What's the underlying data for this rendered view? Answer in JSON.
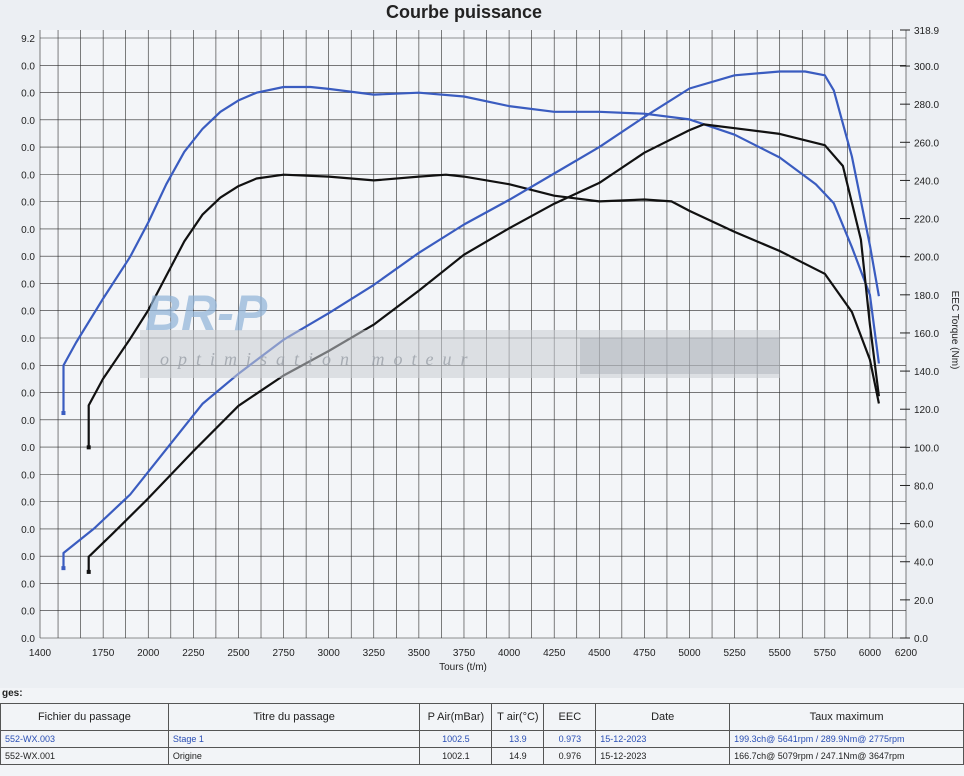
{
  "chart_data": {
    "type": "line",
    "title": "Courbe puissance",
    "xlabel": "Tours (t/m)",
    "ylabel_right": "EEC Torque (Nm)",
    "xlim": [
      1400,
      6200
    ],
    "ylim_left": [
      0,
      322
    ],
    "ylim_right": [
      0.0,
      318.9
    ],
    "x_ticks": [
      "1400",
      "1750",
      "2000",
      "2250",
      "2500",
      "2750",
      "3000",
      "3250",
      "3500",
      "3750",
      "4000",
      "4250",
      "4500",
      "4750",
      "5000",
      "5250",
      "5500",
      "5750",
      "6000",
      "6200"
    ],
    "y_right_ticks": [
      "318.9",
      "300.0",
      "280.0",
      "260.0",
      "240.0",
      "220.0",
      "200.0",
      "180.0",
      "160.0",
      "140.0",
      "120.0",
      "100.0",
      "80.0",
      "60.0",
      "40.0",
      "20.0",
      "0.0"
    ],
    "y_left_ticks": [
      "9.2",
      "0.0",
      "0.0",
      "0.0",
      "0.0",
      "0.0",
      "0.0",
      "0.0",
      "0.0",
      "0.0",
      "0.0",
      "0.0",
      "0.0",
      "0.0",
      "0.0",
      "0.0",
      "0.0",
      "0.0",
      "0.0",
      "0.0",
      "0.0",
      "0.0",
      "0.0"
    ],
    "grid": true,
    "colors": {
      "stage1": "#3a5cc0",
      "origine": "#111111"
    },
    "series": [
      {
        "axis": "right",
        "color": "#3a5cc0",
        "points": [
          [
            1530,
            118
          ],
          [
            1530,
            143
          ],
          [
            1600,
            155
          ],
          [
            1750,
            178
          ],
          [
            1900,
            200
          ],
          [
            2000,
            218
          ],
          [
            2100,
            238
          ],
          [
            2200,
            255
          ],
          [
            2300,
            267
          ],
          [
            2400,
            276
          ],
          [
            2500,
            282
          ],
          [
            2600,
            286
          ],
          [
            2750,
            289
          ],
          [
            2900,
            289
          ],
          [
            3000,
            288
          ],
          [
            3250,
            285
          ],
          [
            3500,
            286
          ],
          [
            3750,
            284
          ],
          [
            4000,
            279
          ],
          [
            4250,
            276
          ],
          [
            4500,
            276
          ],
          [
            4750,
            275
          ],
          [
            5000,
            272
          ],
          [
            5250,
            264
          ],
          [
            5500,
            252
          ],
          [
            5700,
            238
          ],
          [
            5800,
            228
          ],
          [
            5900,
            205
          ],
          [
            6000,
            180
          ],
          [
            6050,
            144
          ]
        ]
      },
      {
        "axis": "right",
        "color": "#111111",
        "points": [
          [
            1670,
            100
          ],
          [
            1670,
            122
          ],
          [
            1750,
            136
          ],
          [
            1900,
            157
          ],
          [
            2000,
            172
          ],
          [
            2100,
            190
          ],
          [
            2200,
            208
          ],
          [
            2300,
            222
          ],
          [
            2400,
            231
          ],
          [
            2500,
            237
          ],
          [
            2600,
            241
          ],
          [
            2750,
            243
          ],
          [
            3000,
            242
          ],
          [
            3250,
            240
          ],
          [
            3500,
            242
          ],
          [
            3650,
            243
          ],
          [
            3750,
            242
          ],
          [
            4000,
            238
          ],
          [
            4250,
            232
          ],
          [
            4500,
            229
          ],
          [
            4750,
            230
          ],
          [
            4900,
            229
          ],
          [
            5000,
            224
          ],
          [
            5250,
            213
          ],
          [
            5500,
            203
          ],
          [
            5750,
            191
          ],
          [
            5900,
            171
          ],
          [
            6000,
            146
          ],
          [
            6050,
            123
          ]
        ]
      },
      {
        "axis": "left",
        "color": "#3a5cc0",
        "points": [
          [
            1530,
            37
          ],
          [
            1530,
            45
          ],
          [
            1700,
            58
          ],
          [
            1900,
            76
          ],
          [
            2100,
            100
          ],
          [
            2300,
            124
          ],
          [
            2500,
            140
          ],
          [
            2750,
            158
          ],
          [
            3000,
            172
          ],
          [
            3250,
            187
          ],
          [
            3500,
            204
          ],
          [
            3750,
            219
          ],
          [
            4000,
            232
          ],
          [
            4250,
            246
          ],
          [
            4500,
            260
          ],
          [
            4750,
            276
          ],
          [
            5000,
            291
          ],
          [
            5250,
            298
          ],
          [
            5500,
            300
          ],
          [
            5641,
            300
          ],
          [
            5750,
            298
          ],
          [
            5800,
            290
          ],
          [
            5900,
            255
          ],
          [
            6000,
            208
          ],
          [
            6050,
            181
          ]
        ]
      },
      {
        "axis": "left",
        "color": "#111111",
        "points": [
          [
            1670,
            35
          ],
          [
            1670,
            43
          ],
          [
            1800,
            55
          ],
          [
            2000,
            74
          ],
          [
            2250,
            99
          ],
          [
            2500,
            123
          ],
          [
            2750,
            139
          ],
          [
            3000,
            152
          ],
          [
            3250,
            166
          ],
          [
            3500,
            184
          ],
          [
            3750,
            203
          ],
          [
            4000,
            217
          ],
          [
            4250,
            230
          ],
          [
            4500,
            241
          ],
          [
            4750,
            257
          ],
          [
            5000,
            269
          ],
          [
            5079,
            272
          ],
          [
            5250,
            270
          ],
          [
            5500,
            267
          ],
          [
            5750,
            261
          ],
          [
            5850,
            250
          ],
          [
            5950,
            211
          ],
          [
            6000,
            166
          ],
          [
            6050,
            128
          ]
        ]
      }
    ]
  },
  "table": {
    "caption": "ges:",
    "headers": [
      "Fichier du passage",
      "Titre du passage",
      "P Air(mBar)",
      "T air(°C)",
      "EEC",
      "Date",
      "Taux maximum"
    ],
    "rows": [
      [
        "552-WX.003",
        "Stage 1",
        "1002.5",
        "13.9",
        "0.973",
        "15-12-2023",
        "199.3ch@ 5641rpm / 289.9Nm@ 2775rpm"
      ],
      [
        "552-WX.001",
        "Origine",
        "1002.1",
        "14.9",
        "0.976",
        "15-12-2023",
        "166.7ch@ 5079rpm / 247.1Nm@ 3647rpm"
      ]
    ]
  }
}
